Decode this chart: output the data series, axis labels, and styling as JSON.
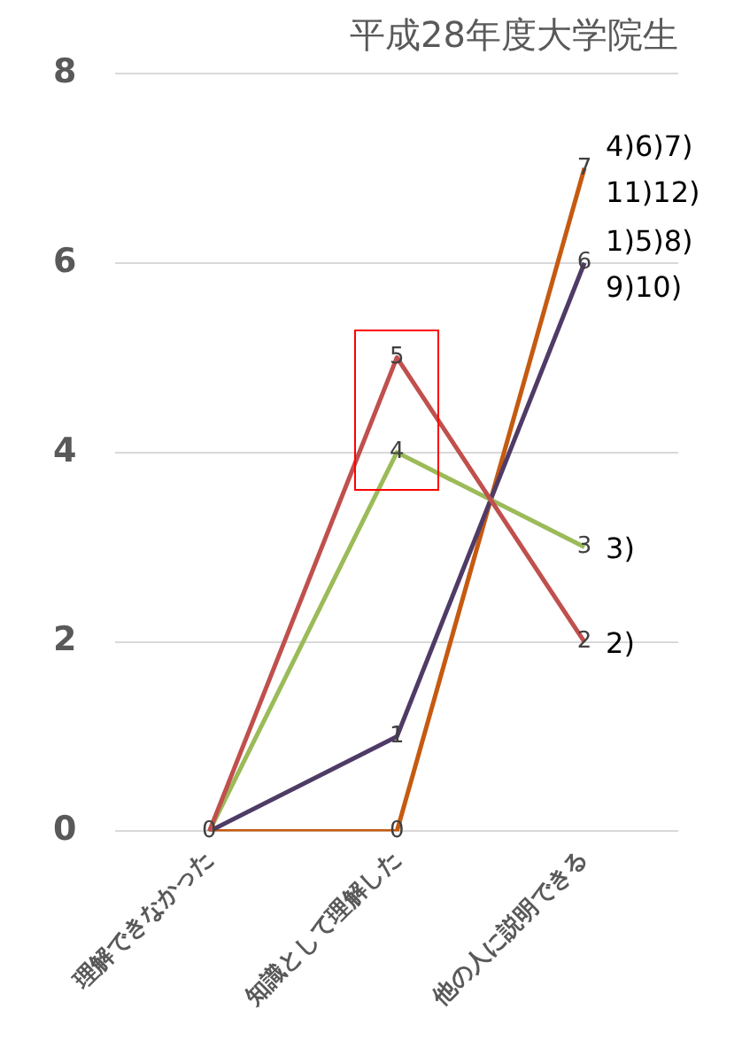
{
  "chart_data": {
    "type": "line",
    "title": "平成28年度大学院生",
    "categories": [
      "理解できなかった",
      "知識として理解した",
      "他の人に説明できる"
    ],
    "series": [
      {
        "name": "2)",
        "color": "#c0504d",
        "values": [
          0,
          5,
          2
        ],
        "value_labels": [
          "0",
          "5",
          "2"
        ]
      },
      {
        "name": "3)",
        "color": "#9bbb59",
        "values": [
          0,
          4,
          3
        ],
        "value_labels": [
          null,
          "4",
          "3"
        ]
      },
      {
        "name": "1)5)8)9)10)",
        "color": "#4f3b66",
        "values": [
          0,
          1,
          6
        ],
        "value_labels": [
          null,
          "1",
          "6"
        ]
      },
      {
        "name": "4)6)7)11)12)",
        "color": "#c55a11",
        "values": [
          0,
          0,
          7
        ],
        "value_labels": [
          null,
          "0",
          "7"
        ]
      }
    ],
    "ylim": [
      0,
      8
    ],
    "yticks": [
      0,
      2,
      4,
      6,
      8
    ],
    "grid": "y",
    "legend": false,
    "marker": "none",
    "line_style": "solid"
  }
}
